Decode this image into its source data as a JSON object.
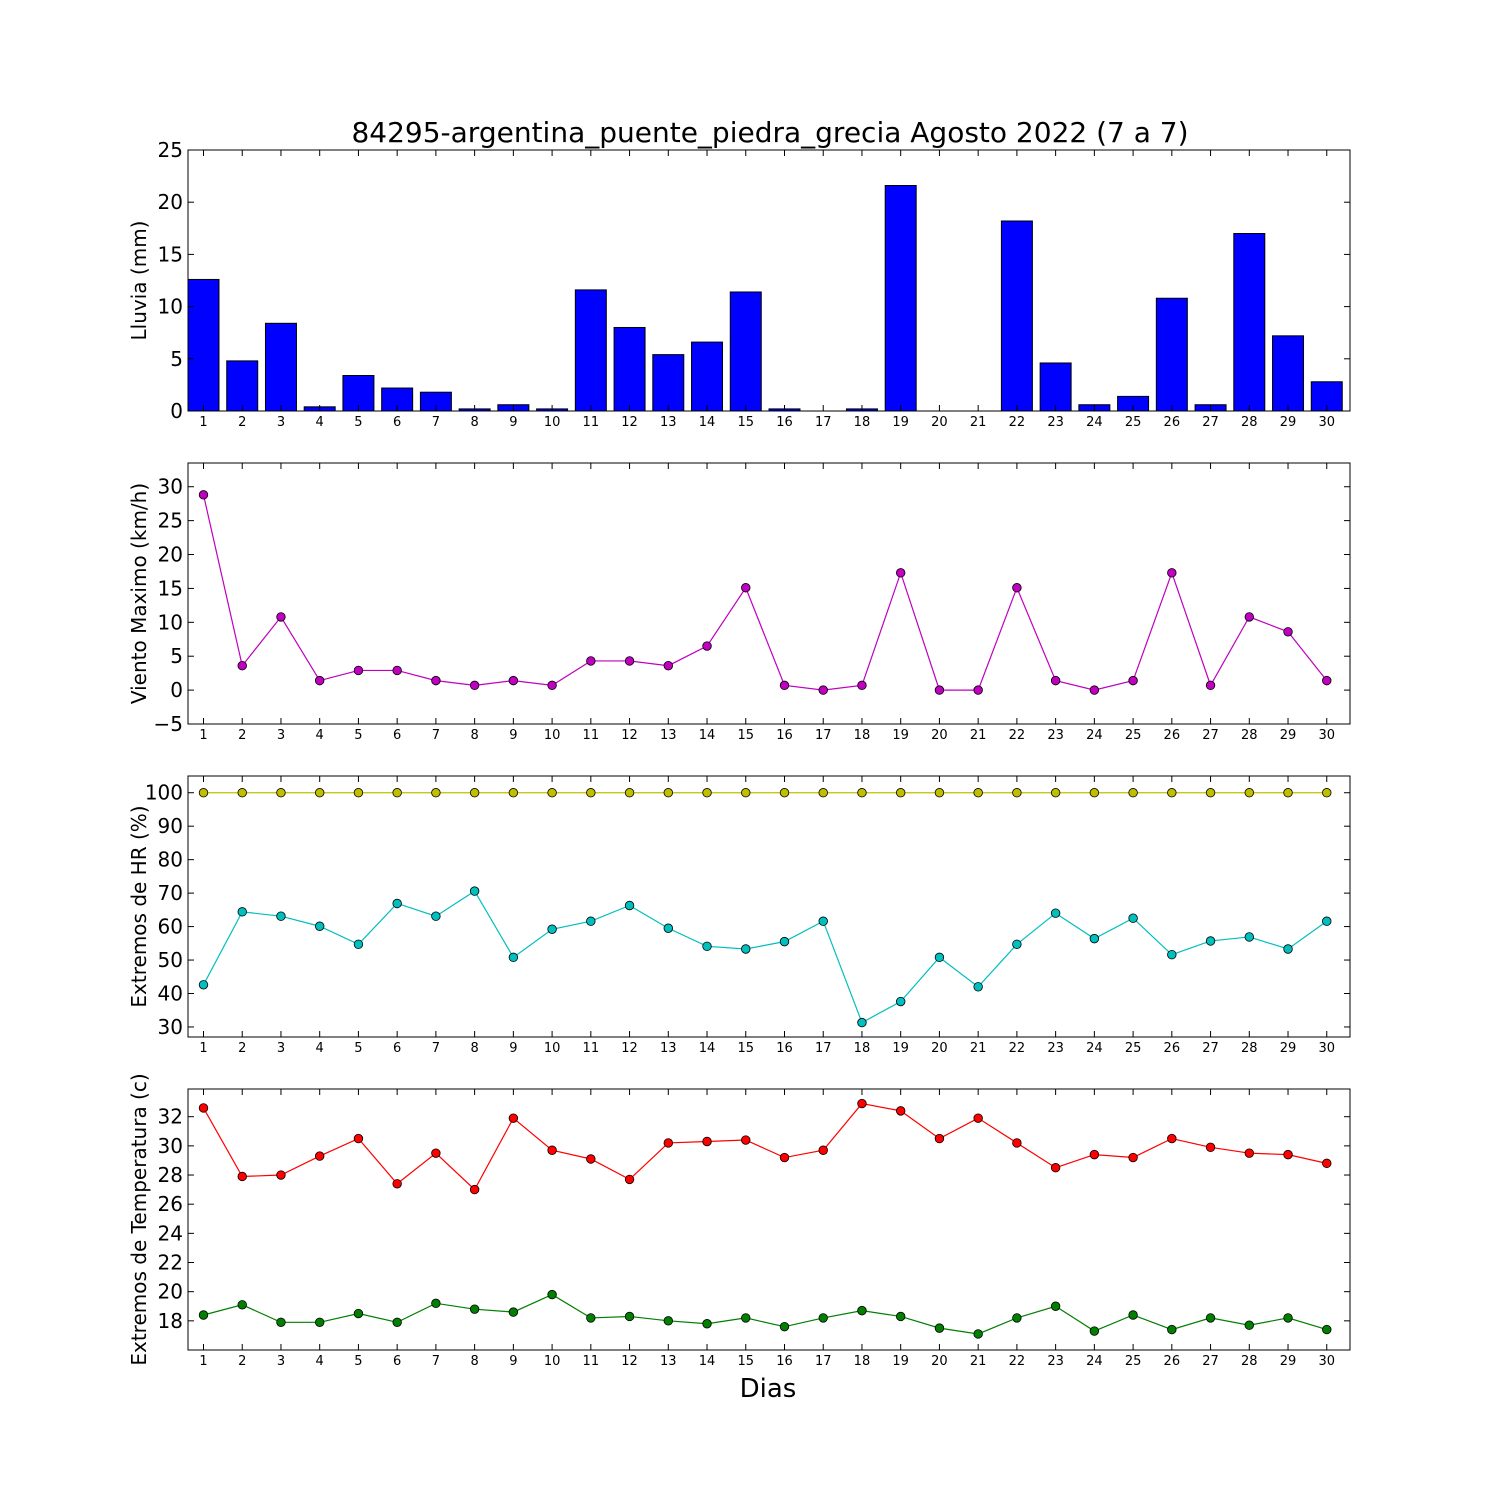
{
  "figure": {
    "title": "84295-argentina_puente_piedra_grecia Agosto 2022  (7 a 7)",
    "xlabel": "Dias"
  },
  "chart_data": [
    {
      "type": "bar",
      "ylabel": "Lluvia (mm)",
      "ylim": [
        0,
        25
      ],
      "yticks": [
        0,
        5,
        10,
        15,
        20,
        25
      ],
      "xlim": [
        0.6,
        30.6
      ],
      "categories": [
        1,
        2,
        3,
        4,
        5,
        6,
        7,
        8,
        9,
        10,
        11,
        12,
        13,
        14,
        15,
        16,
        17,
        18,
        19,
        20,
        21,
        22,
        23,
        24,
        25,
        26,
        27,
        28,
        29,
        30
      ],
      "series": [
        {
          "color": "#0000ff",
          "values": [
            12.6,
            4.8,
            8.4,
            0.4,
            3.4,
            2.2,
            1.8,
            0.2,
            0.6,
            0.2,
            11.6,
            8.0,
            5.4,
            6.6,
            11.4,
            0.2,
            0.0,
            0.2,
            21.6,
            0.0,
            0.0,
            18.2,
            4.6,
            0.6,
            1.4,
            10.8,
            0.6,
            17.0,
            7.2,
            2.8
          ]
        }
      ],
      "grid": false
    },
    {
      "type": "line",
      "ylabel": "Viento Maximo (km/h)",
      "ylim": [
        -5,
        33.5
      ],
      "yticks": [
        -5,
        0,
        5,
        10,
        15,
        20,
        25,
        30
      ],
      "xlim": [
        0.6,
        30.6
      ],
      "x": [
        1,
        2,
        3,
        4,
        5,
        6,
        7,
        8,
        9,
        10,
        11,
        12,
        13,
        14,
        15,
        16,
        17,
        18,
        19,
        20,
        21,
        22,
        23,
        24,
        25,
        26,
        27,
        28,
        29,
        30
      ],
      "series": [
        {
          "color": "#bf00bf",
          "values": [
            28.8,
            3.6,
            10.8,
            1.4,
            2.9,
            2.9,
            1.4,
            0.7,
            1.4,
            0.7,
            4.3,
            4.3,
            3.6,
            6.5,
            15.1,
            0.7,
            0.0,
            0.7,
            17.3,
            0.0,
            0.0,
            15.1,
            1.4,
            0.0,
            1.4,
            17.3,
            0.7,
            10.8,
            8.6,
            1.4
          ]
        }
      ],
      "grid": false
    },
    {
      "type": "line",
      "ylabel": "Extremos de HR (%)",
      "ylim": [
        27,
        105
      ],
      "yticks": [
        30,
        40,
        50,
        60,
        70,
        80,
        90,
        100
      ],
      "xlim": [
        0.6,
        30.6
      ],
      "x": [
        1,
        2,
        3,
        4,
        5,
        6,
        7,
        8,
        9,
        10,
        11,
        12,
        13,
        14,
        15,
        16,
        17,
        18,
        19,
        20,
        21,
        22,
        23,
        24,
        25,
        26,
        27,
        28,
        29,
        30
      ],
      "series": [
        {
          "color": "#bfbf00",
          "values": [
            100,
            100,
            100,
            100,
            100,
            100,
            100,
            100,
            100,
            100,
            100,
            100,
            100,
            100,
            100,
            100,
            100,
            100,
            100,
            100,
            100,
            100,
            100,
            100,
            100,
            100,
            100,
            100,
            100,
            100
          ]
        },
        {
          "color": "#00bfbf",
          "values": [
            42.6,
            64.4,
            63.1,
            60.1,
            54.7,
            66.9,
            63.1,
            70.6,
            50.8,
            59.2,
            61.6,
            66.3,
            59.5,
            54.1,
            53.3,
            55.5,
            61.6,
            31.3,
            37.6,
            50.8,
            42.0,
            54.7,
            64.0,
            56.4,
            62.5,
            51.6,
            55.7,
            56.9,
            53.3,
            61.6
          ]
        }
      ],
      "grid": false
    },
    {
      "type": "line",
      "ylabel": "Extremos de Temperatura (c)",
      "ylim": [
        16.0,
        33.9
      ],
      "yticks": [
        18,
        20,
        22,
        24,
        26,
        28,
        30,
        32
      ],
      "xlim": [
        0.6,
        30.6
      ],
      "x": [
        1,
        2,
        3,
        4,
        5,
        6,
        7,
        8,
        9,
        10,
        11,
        12,
        13,
        14,
        15,
        16,
        17,
        18,
        19,
        20,
        21,
        22,
        23,
        24,
        25,
        26,
        27,
        28,
        29,
        30
      ],
      "series": [
        {
          "color": "#ff0000",
          "values": [
            32.6,
            27.9,
            28.0,
            29.3,
            30.5,
            27.4,
            29.5,
            27.0,
            31.9,
            29.7,
            29.1,
            27.7,
            30.2,
            30.3,
            30.4,
            29.2,
            29.7,
            32.9,
            32.4,
            30.5,
            31.9,
            30.2,
            28.5,
            29.4,
            29.2,
            30.5,
            29.9,
            29.5,
            29.4,
            28.8
          ]
        },
        {
          "color": "#007f00",
          "values": [
            18.4,
            19.1,
            17.9,
            17.9,
            18.5,
            17.9,
            19.2,
            18.8,
            18.6,
            19.8,
            18.2,
            18.3,
            18.0,
            17.8,
            18.2,
            17.6,
            18.2,
            18.7,
            18.3,
            17.5,
            17.1,
            18.2,
            19.0,
            17.3,
            18.4,
            17.4,
            18.2,
            17.7,
            18.2,
            17.4
          ]
        }
      ],
      "grid": false
    }
  ]
}
